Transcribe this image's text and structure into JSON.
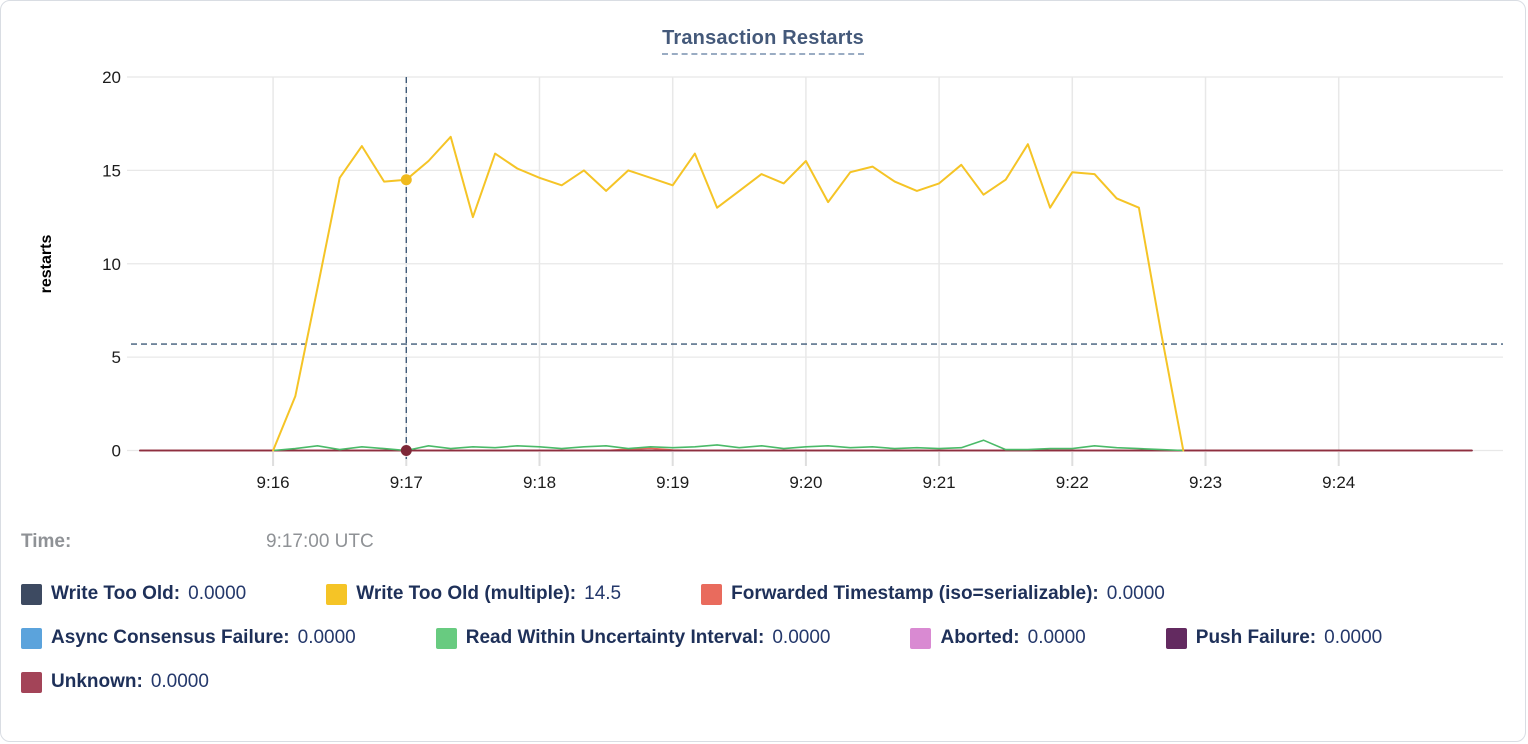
{
  "readout": {
    "time_label": "Time:",
    "time_value": "9:17:00 UTC"
  },
  "legend": {
    "rows": [
      [
        {
          "label": "Write Too Old:",
          "value": "0.0000",
          "color": "#3d4a61"
        },
        {
          "label": "Write Too Old (multiple):",
          "value": "14.5",
          "color": "#f5c426"
        },
        {
          "label": "Forwarded Timestamp (iso=serializable):",
          "value": "0.0000",
          "color": "#e96b5d"
        }
      ],
      [
        {
          "label": "Async Consensus Failure:",
          "value": "0.0000",
          "color": "#5ba3dc"
        },
        {
          "label": "Read Within Uncertainty Interval:",
          "value": "0.0000",
          "color": "#68cb80"
        },
        {
          "label": "Aborted:",
          "value": "0.0000",
          "color": "#d98ad2"
        },
        {
          "label": "Push Failure:",
          "value": "0.0000",
          "color": "#632a60"
        }
      ],
      [
        {
          "label": "Unknown:",
          "value": "0.0000",
          "color": "#a34458"
        }
      ]
    ]
  },
  "chart_data": {
    "type": "line",
    "title": "Transaction Restarts",
    "xlabel": "",
    "ylabel": "restarts",
    "ylim": [
      0,
      20
    ],
    "y_ticks": [
      0,
      5,
      10,
      15,
      20
    ],
    "x_ticks": [
      {
        "t": 960,
        "label": "9:16"
      },
      {
        "t": 1020,
        "label": "9:17"
      },
      {
        "t": 1080,
        "label": "9:18"
      },
      {
        "t": 1140,
        "label": "9:19"
      },
      {
        "t": 1200,
        "label": "9:20"
      },
      {
        "t": 1260,
        "label": "9:21"
      },
      {
        "t": 1320,
        "label": "9:22"
      },
      {
        "t": 1380,
        "label": "9:23"
      },
      {
        "t": 1440,
        "label": "9:24"
      }
    ],
    "x_domain_seconds_after_9am": [
      896,
      1514
    ],
    "grid": true,
    "legend_position": "bottom",
    "hover_time_seconds": 1020,
    "hover_time_label": "9:17:00 UTC",
    "h_guide_value": 5.7,
    "guide_color": "#3f5a78",
    "series": [
      {
        "name": "Write Too Old",
        "color": "#3d4a61",
        "flat": [
          900,
          1500,
          0
        ]
      },
      {
        "name": "Async Consensus Failure",
        "color": "#5ba3dc",
        "flat": [
          900,
          1500,
          0
        ]
      },
      {
        "name": "Aborted",
        "color": "#d98ad2",
        "flat": [
          900,
          1500,
          0
        ]
      },
      {
        "name": "Push Failure",
        "color": "#632a60",
        "flat": [
          900,
          1500,
          0
        ]
      },
      {
        "name": "Forwarded Timestamp (iso=serializable)",
        "color": "#e96b5d",
        "points": [
          [
            900,
            0
          ],
          [
            1110,
            0
          ],
          [
            1120,
            0.07
          ],
          [
            1130,
            0.12
          ],
          [
            1140,
            0.02
          ],
          [
            1150,
            0
          ],
          [
            1500,
            0
          ]
        ]
      },
      {
        "name": "Unknown",
        "color": "#8e2f3f",
        "flat": [
          900,
          1500,
          0
        ]
      },
      {
        "name": "Read Within Uncertainty Interval",
        "color": "#4aba68",
        "t0": 960,
        "dt": 10,
        "values": [
          0,
          0.1,
          0.25,
          0.05,
          0.2,
          0.1,
          0,
          0.25,
          0.1,
          0.2,
          0.15,
          0.25,
          0.2,
          0.1,
          0.2,
          0.25,
          0.1,
          0.2,
          0.15,
          0.2,
          0.3,
          0.15,
          0.25,
          0.1,
          0.2,
          0.25,
          0.15,
          0.2,
          0.1,
          0.15,
          0.1,
          0.15,
          0.55,
          0.05,
          0.05,
          0.1,
          0.1,
          0.25,
          0.15,
          0.1,
          0.05,
          0
        ]
      },
      {
        "name": "Write Too Old (multiple)",
        "color": "#f5c426",
        "t0": 960,
        "dt": 10,
        "values": [
          0,
          2.9,
          8.7,
          14.6,
          16.3,
          14.4,
          14.5,
          15.5,
          16.8,
          12.5,
          15.9,
          15.1,
          14.6,
          14.2,
          15.0,
          13.9,
          15.0,
          14.6,
          14.2,
          15.9,
          13.0,
          13.9,
          14.8,
          14.3,
          15.5,
          13.3,
          14.9,
          15.2,
          14.4,
          13.9,
          14.3,
          15.3,
          13.7,
          14.5,
          16.4,
          13.0,
          14.9,
          14.8,
          13.5,
          13.0,
          6.3,
          0
        ]
      }
    ],
    "cursor_dots": [
      {
        "series": "Write Too Old (multiple)",
        "value": 14.5,
        "color": "#f0ba1e"
      },
      {
        "series": "Unknown",
        "value": 0,
        "color": "#7e2838"
      }
    ]
  }
}
